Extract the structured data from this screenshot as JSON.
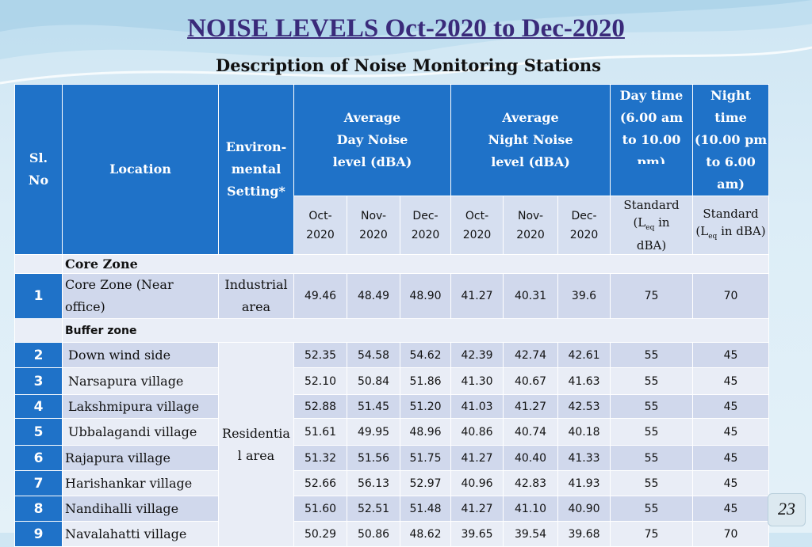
{
  "title": "NOISE LEVELS Oct-2020 to Dec-2020",
  "subtitle": "Description of Noise Monitoring Stations",
  "page_number": "23",
  "header": {
    "sl_no": [
      "Sl.",
      "No"
    ],
    "location": "Location",
    "setting": [
      "Environ-",
      "mental",
      "Setting*"
    ],
    "avg_day": [
      "Average",
      "Day Noise",
      "level (dBA)"
    ],
    "avg_night": [
      "Average",
      "Night Noise",
      "level (dBA)"
    ],
    "day_time": [
      "Day time",
      "(6.00 am",
      "to 10.00",
      "pm)"
    ],
    "night_time": [
      "Night time",
      "(10.00 pm",
      "to 6.00 am)"
    ],
    "months": [
      [
        "Oct-",
        "2020"
      ],
      [
        "Nov-",
        "2020"
      ],
      [
        "Dec-",
        "2020"
      ],
      [
        "Oct-",
        "2020"
      ],
      [
        "Nov-",
        "2020"
      ],
      [
        "Dec-",
        "2020"
      ]
    ],
    "day_standard": [
      "Standard",
      "(L",
      "eq",
      " in",
      "dBA)"
    ],
    "night_standard": [
      "Standard",
      "(L",
      "eq",
      " in dBA)"
    ]
  },
  "core_zone": {
    "label": "Core Zone",
    "row": {
      "sl": "1",
      "location": [
        "Core Zone (Near",
        "office)"
      ],
      "setting": [
        "Industrial",
        "area"
      ],
      "values": [
        "49.46",
        "48.49",
        "48.90",
        "41.27",
        "40.31",
        "39.6",
        "75",
        "70"
      ]
    }
  },
  "buffer_zone": {
    "label": "Buffer zone",
    "setting": [
      "Residentia",
      "l area"
    ],
    "rows": [
      {
        "sl": "2",
        "location": "Down wind side",
        "values": [
          "52.35",
          "54.58",
          "54.62",
          "42.39",
          "42.74",
          "42.61",
          "55",
          "45"
        ]
      },
      {
        "sl": "3",
        "location": "Narsapura village",
        "values": [
          "52.10",
          "50.84",
          "51.86",
          "41.30",
          "40.67",
          "41.63",
          "55",
          "45"
        ]
      },
      {
        "sl": "4",
        "location": "Lakshmipura village",
        "values": [
          "52.88",
          "51.45",
          "51.20",
          "41.03",
          "41.27",
          "42.53",
          "55",
          "45"
        ]
      },
      {
        "sl": "5",
        "location": "Ubbalagandi village",
        "values": [
          "51.61",
          "49.95",
          "48.96",
          "40.86",
          "40.74",
          "40.18",
          "55",
          "45"
        ]
      },
      {
        "sl": "6",
        "location": "Rajapura village",
        "values": [
          "51.32",
          "51.56",
          "51.75",
          "41.27",
          "40.40",
          "41.33",
          "55",
          "45"
        ]
      },
      {
        "sl": "7",
        "location": "Harishankar village",
        "values": [
          "52.66",
          "56.13",
          "52.97",
          "40.96",
          "42.83",
          "41.93",
          "55",
          "45"
        ]
      },
      {
        "sl": "8",
        "location": "Nandihalli village",
        "values": [
          "51.60",
          "52.51",
          "51.48",
          "41.27",
          "41.10",
          "40.90",
          "55",
          "45"
        ]
      },
      {
        "sl": "9",
        "location": "Navalahatti village",
        "values": [
          "50.29",
          "50.86",
          "48.62",
          "39.65",
          "39.54",
          "39.68",
          "75",
          "70"
        ]
      }
    ]
  }
}
